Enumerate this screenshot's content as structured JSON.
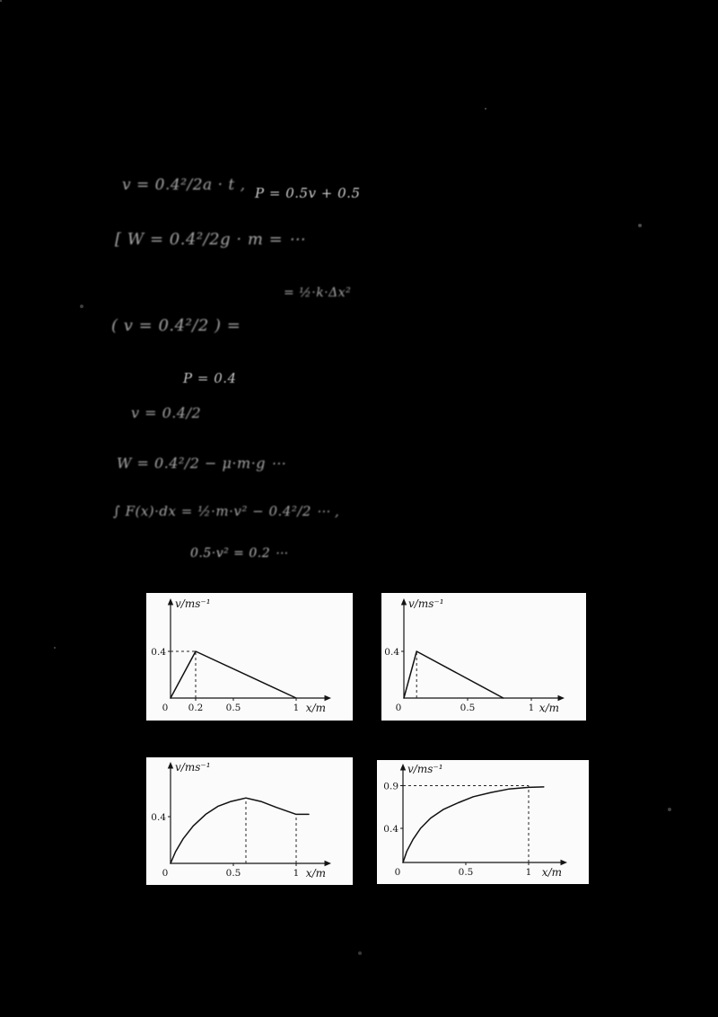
{
  "page": {
    "background": "#000000",
    "paper": "#fbfbfb",
    "ink": "#141414"
  },
  "equations": {
    "fragments": [
      {
        "text": "v = 0.4²/2a · t ,"
      },
      {
        "text": "P = 0.5v + 0.5"
      },
      {
        "text": "[ W = 0.4²/2g · m = ⋯"
      },
      {
        "text": "= ½·k·Δx²"
      },
      {
        "text": "( v = 0.4²/2 ) ="
      },
      {
        "text": "P = 0.4"
      },
      {
        "text": "v = 0.4/2"
      },
      {
        "text": "W = 0.4²/2 − μ·m·g ⋯"
      },
      {
        "text": "∫ F(x)·dx = ½·m·v² − 0.4²/2 ⋯ ,"
      },
      {
        "text": "0.5·v² = 0.2 ⋯"
      }
    ]
  },
  "chart_data": [
    {
      "type": "line",
      "position": "top-left",
      "ylabel": "v/ms⁻¹",
      "xlabel": "x/m",
      "x_ticks": [
        {
          "value": 0,
          "label": "0"
        },
        {
          "value": 0.2,
          "label": "0.2"
        },
        {
          "value": 0.5,
          "label": "0.5"
        },
        {
          "value": 1,
          "label": "1"
        }
      ],
      "y_ticks": [
        {
          "value": 0.4,
          "label": "0.4"
        }
      ],
      "points": [
        [
          0,
          0
        ],
        [
          0.2,
          0.4
        ],
        [
          1,
          0
        ]
      ],
      "dashed": [
        {
          "type": "h",
          "y": 0.4,
          "x": 0.2
        },
        {
          "type": "v",
          "x": 0.2,
          "y": 0.4
        }
      ],
      "xlim": [
        0,
        1.25
      ],
      "ylim": [
        0,
        0.55
      ],
      "description": "v rises linearly from 0 to 0.4 m/s at x = 0.2 m, then falls linearly to 0 at x = 1 m"
    },
    {
      "type": "line",
      "position": "top-right",
      "ylabel": "v/ms⁻¹",
      "xlabel": "x/m",
      "x_ticks": [
        {
          "value": 0,
          "label": "0"
        },
        {
          "value": 0.5,
          "label": "0.5"
        },
        {
          "value": 1,
          "label": "1"
        }
      ],
      "y_ticks": [
        {
          "value": 0.4,
          "label": "0.4"
        }
      ],
      "points": [
        [
          0,
          0
        ],
        [
          0.1,
          0.4
        ],
        [
          0.78,
          0
        ]
      ],
      "dashed": [
        {
          "type": "v",
          "x": 0.1,
          "y": 0.4
        }
      ],
      "xlim": [
        0,
        1.25
      ],
      "ylim": [
        0,
        0.55
      ],
      "description": "v rises steeply to 0.4 m/s near x ≈ 0.1 m, then falls linearly to 0 at x ≈ 0.78 m"
    },
    {
      "type": "line",
      "position": "bottom-left",
      "ylabel": "v/ms⁻¹",
      "xlabel": "x/m",
      "x_ticks": [
        {
          "value": 0,
          "label": "0"
        },
        {
          "value": 0.5,
          "label": "0.5"
        },
        {
          "value": 1,
          "label": "1"
        }
      ],
      "y_ticks": [
        {
          "value": 0.4,
          "label": "0.4"
        }
      ],
      "points": [
        [
          0,
          0
        ],
        [
          0.04,
          0.1
        ],
        [
          0.1,
          0.21
        ],
        [
          0.18,
          0.32
        ],
        [
          0.28,
          0.42
        ],
        [
          0.38,
          0.49
        ],
        [
          0.48,
          0.53
        ],
        [
          0.6,
          0.56
        ],
        [
          0.72,
          0.53
        ],
        [
          0.84,
          0.48
        ],
        [
          1.0,
          0.42
        ],
        [
          1.1,
          0.42
        ]
      ],
      "dashed": [
        {
          "type": "v",
          "x": 0.6,
          "y": 0.56
        },
        {
          "type": "v",
          "x": 1.0,
          "y": 0.42
        }
      ],
      "xlim": [
        0,
        1.25
      ],
      "ylim": [
        0,
        0.65
      ],
      "description": "v rises with decreasing slope to a maximum ≈ 0.56 m/s at x ≈ 0.6 m, then decreases to ≈ 0.42 m/s at x = 1 m and stays flat"
    },
    {
      "type": "line",
      "position": "bottom-right",
      "ylabel": "v/ms⁻¹",
      "xlabel": "x/m",
      "x_ticks": [
        {
          "value": 0,
          "label": "0"
        },
        {
          "value": 0.5,
          "label": "0.5"
        },
        {
          "value": 1,
          "label": "1"
        }
      ],
      "y_ticks": [
        {
          "value": 0.4,
          "label": "0.4"
        },
        {
          "value": 0.9,
          "label": "0.9"
        }
      ],
      "points": [
        [
          0,
          0
        ],
        [
          0.03,
          0.13
        ],
        [
          0.08,
          0.27
        ],
        [
          0.14,
          0.4
        ],
        [
          0.22,
          0.52
        ],
        [
          0.32,
          0.62
        ],
        [
          0.44,
          0.7
        ],
        [
          0.56,
          0.77
        ],
        [
          0.7,
          0.82
        ],
        [
          0.84,
          0.86
        ],
        [
          1.0,
          0.88
        ],
        [
          1.12,
          0.885
        ]
      ],
      "dashed": [
        {
          "type": "h",
          "y": 0.9,
          "x": 1.0
        },
        {
          "type": "v",
          "x": 1.0,
          "y": 0.9
        }
      ],
      "xlim": [
        0,
        1.25
      ],
      "ylim": [
        0,
        1.0
      ],
      "description": "v rises asymptotically toward 0.9 m/s, reaching ≈ 0.88 m/s at x = 1 m"
    }
  ]
}
